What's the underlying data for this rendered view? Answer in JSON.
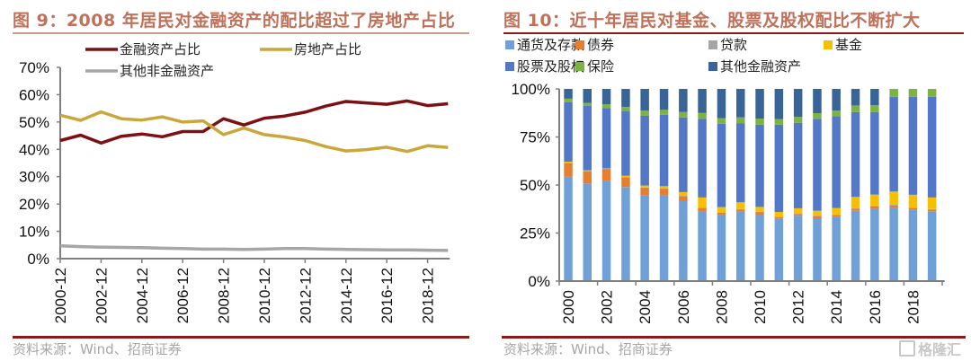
{
  "left": {
    "title": "图 9：2008 年居民对金融资产的配比超过了房地产占比",
    "source": "资料来源：Wind、招商证券"
  },
  "right": {
    "title": "图 10：近十年居民对基金、股票及股权配比不断扩大",
    "source": "资料来源：Wind、招商证券"
  },
  "watermark": "格隆汇",
  "chart_data": [
    {
      "type": "line",
      "title": "图 9：2008 年居民对金融资产的配比超过了房地产占比",
      "xlabel": "",
      "ylabel": "",
      "x": [
        "2000-12",
        "2001-12",
        "2002-12",
        "2003-12",
        "2004-12",
        "2005-12",
        "2006-12",
        "2007-12",
        "2008-12",
        "2009-12",
        "2010-12",
        "2011-12",
        "2012-12",
        "2013-12",
        "2014-12",
        "2015-12",
        "2016-12",
        "2017-12",
        "2018-12",
        "2019-12"
      ],
      "x_tick_labels": [
        "2000-12",
        "2002-12",
        "2004-12",
        "2006-12",
        "2008-12",
        "2010-12",
        "2012-12",
        "2014-12",
        "2016-12",
        "2018-12"
      ],
      "ylim": [
        0,
        70
      ],
      "y_ticks": [
        "0%",
        "10%",
        "20%",
        "30%",
        "40%",
        "50%",
        "60%",
        "70%"
      ],
      "grid": false,
      "legend_position": "top",
      "series": [
        {
          "name": "金融资产占比",
          "color": "#7b1113",
          "values": [
            43.2,
            45.2,
            42.3,
            44.8,
            45.6,
            44.6,
            46.5,
            46.5,
            51.2,
            48.9,
            51.4,
            52.2,
            53.6,
            55.8,
            57.5,
            57.0,
            56.5,
            57.7,
            56.0,
            56.7
          ]
        },
        {
          "name": "房地产占比",
          "color": "#c9a73a",
          "values": [
            52.5,
            50.6,
            53.7,
            51.2,
            50.7,
            51.9,
            50.0,
            50.4,
            45.4,
            47.8,
            45.4,
            44.5,
            43.2,
            41.0,
            39.4,
            39.9,
            40.8,
            39.2,
            41.3,
            40.7
          ]
        },
        {
          "name": "其他非金融资产",
          "color": "#a6a6a6",
          "values": [
            4.7,
            4.4,
            4.2,
            4.1,
            4.0,
            3.8,
            3.7,
            3.5,
            3.5,
            3.4,
            3.5,
            3.7,
            3.7,
            3.5,
            3.4,
            3.3,
            3.2,
            3.2,
            3.1,
            3.0
          ]
        }
      ]
    },
    {
      "type": "bar",
      "stacked": true,
      "title": "图 10：近十年居民对基金、股票及股权配比不断扩大",
      "xlabel": "",
      "ylabel": "",
      "categories": [
        "2000",
        "2001",
        "2002",
        "2003",
        "2004",
        "2005",
        "2006",
        "2007",
        "2008",
        "2009",
        "2010",
        "2011",
        "2012",
        "2013",
        "2014",
        "2015",
        "2016",
        "2017",
        "2018",
        "2019"
      ],
      "x_tick_labels": [
        "2000",
        "2002",
        "2004",
        "2006",
        "2008",
        "2010",
        "2012",
        "2014",
        "2016",
        "2018"
      ],
      "ylim": [
        0,
        100
      ],
      "y_ticks": [
        "0%",
        "25%",
        "50%",
        "75%",
        "100%"
      ],
      "grid": false,
      "legend_position": "top",
      "series": [
        {
          "name": "通货及存款",
          "color": "#6fa0d8",
          "values": [
            54.4,
            50.8,
            52.0,
            48.9,
            44.7,
            44.7,
            41.6,
            36.1,
            34.4,
            36.4,
            34.6,
            32.6,
            34.0,
            32.7,
            33.5,
            36.6,
            37.7,
            38.0,
            37.0,
            36.3
          ]
        },
        {
          "name": "债券",
          "color": "#e67e2f",
          "values": [
            7.0,
            6.4,
            6.3,
            5.1,
            3.9,
            3.4,
            2.6,
            1.9,
            1.1,
            0.9,
            1.2,
            0.7,
            0.8,
            1.1,
            0.9,
            1.1,
            1.2,
            1.3,
            1.0,
            0.9
          ]
        },
        {
          "name": "贷款",
          "color": "#a5a5a5",
          "values": [
            0.1,
            0.1,
            0.1,
            0.1,
            0.1,
            0.1,
            0.1,
            0.1,
            0.2,
            0.2,
            0.2,
            0.2,
            0.2,
            0.3,
            0.3,
            0.3,
            0.4,
            0.4,
            0.3,
            0.3
          ]
        },
        {
          "name": "基金",
          "color": "#f6c000",
          "values": [
            0.6,
            0.3,
            0.3,
            0.7,
            1.0,
            1.2,
            2.0,
            5.4,
            2.8,
            3.5,
            2.6,
            2.5,
            2.9,
            2.5,
            3.3,
            5.8,
            5.7,
            6.9,
            6.6,
            6.0
          ]
        },
        {
          "name": "股票及股权",
          "color": "#5478c8",
          "values": [
            30.9,
            33.5,
            31.3,
            33.7,
            36.4,
            37.2,
            38.9,
            40.9,
            43.4,
            41.2,
            42.8,
            45.4,
            44.5,
            47.8,
            47.8,
            44.2,
            43.0,
            49.3,
            51.0,
            52.4
          ]
        },
        {
          "name": "保险",
          "color": "#7cb342",
          "values": [
            1.9,
            1.6,
            2.0,
            2.1,
            2.7,
            2.5,
            2.8,
            3.1,
            2.8,
            3.0,
            3.2,
            2.9,
            3.0,
            3.0,
            3.0,
            3.4,
            3.5,
            4.1,
            4.1,
            4.1
          ]
        },
        {
          "name": "其他金融资产",
          "color": "#386497",
          "values": [
            5.1,
            7.3,
            8.0,
            9.4,
            11.2,
            10.9,
            12.0,
            12.5,
            15.3,
            14.8,
            15.4,
            15.7,
            14.6,
            12.6,
            11.2,
            8.6,
            8.5,
            0.0,
            0.0,
            0.0
          ]
        }
      ]
    }
  ]
}
